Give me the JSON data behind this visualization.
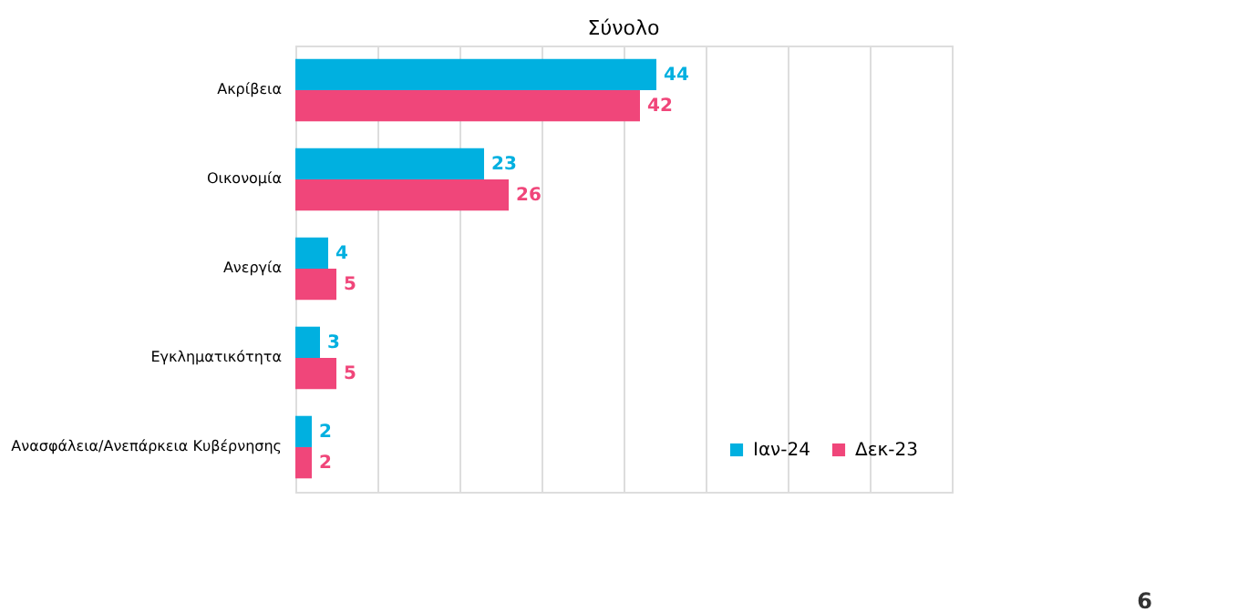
{
  "chart_data": {
    "type": "bar",
    "orientation": "horizontal",
    "title": "Σύνολο",
    "categories": [
      "Ακρίβεια",
      "Οικονομία",
      "Ανεργία",
      "Εγκληματικότητα",
      "Ανασφάλεια/Ανεπάρκεια Κυβέρνησης"
    ],
    "series": [
      {
        "name": "Ιαν-24",
        "color": "#00b0e0",
        "values": [
          44,
          23,
          4,
          3,
          2
        ]
      },
      {
        "name": "Δεκ-23",
        "color": "#f0467a",
        "values": [
          42,
          26,
          5,
          5,
          2
        ]
      }
    ],
    "xlim": [
      0,
      80
    ],
    "xticks": [
      {
        "value": 0,
        "label": null
      },
      {
        "value": 10,
        "label": null
      },
      {
        "value": 20,
        "label": null
      },
      {
        "value": 30,
        "label": null
      },
      {
        "value": 40,
        "label": null
      },
      {
        "value": 50,
        "label": null
      },
      {
        "value": 60,
        "label": null
      },
      {
        "value": 70,
        "label": null
      },
      {
        "value": 80,
        "label": null
      }
    ],
    "grid": "x",
    "tick_labels": "y",
    "data_labels": true,
    "legend": "bottom right",
    "annotations": [
      "6"
    ]
  }
}
